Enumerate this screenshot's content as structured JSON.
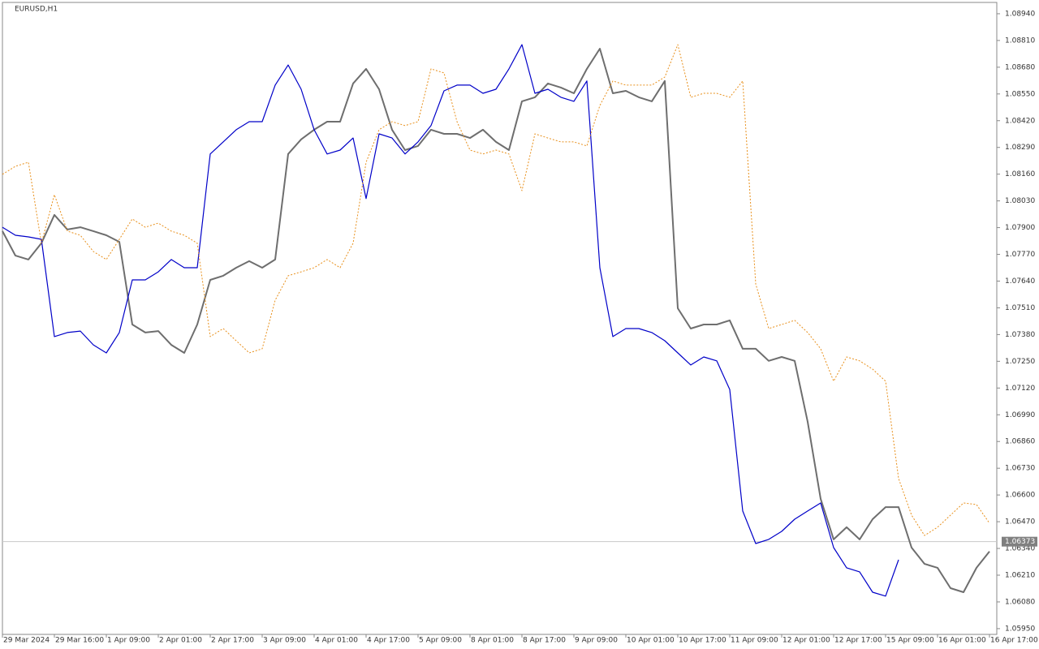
{
  "chart_data": {
    "type": "line",
    "title": "EURUSD,H1",
    "categories": [
      "29 Mar 2024",
      null,
      null,
      null,
      "29 Mar 16:00",
      null,
      null,
      null,
      "1 Apr 09:00",
      null,
      null,
      null,
      "2 Apr 01:00",
      null,
      null,
      null,
      "2 Apr 17:00",
      null,
      null,
      null,
      "3 Apr 09:00",
      null,
      null,
      null,
      "4 Apr 01:00",
      null,
      null,
      null,
      "4 Apr 17:00",
      null,
      null,
      null,
      "5 Apr 09:00",
      null,
      null,
      null,
      "8 Apr 01:00",
      null,
      null,
      null,
      "8 Apr 17:00",
      null,
      null,
      null,
      "9 Apr 09:00",
      null,
      null,
      null,
      "10 Apr 01:00",
      null,
      null,
      null,
      "10 Apr 17:00",
      null,
      null,
      null,
      "11 Apr 09:00",
      null,
      null,
      null,
      "12 Apr 01:00",
      null,
      null,
      null,
      "12 Apr 17:00",
      null,
      null,
      null,
      "15 Apr 09:00",
      null,
      null,
      null,
      "16 Apr 01:00",
      null,
      null,
      null,
      "16 Apr 17:00"
    ],
    "series": [
      {
        "color": "#6e6e6e",
        "style": "solid",
        "values": [
          1.07883,
          1.07764,
          1.07745,
          1.07824,
          1.07962,
          1.07891,
          1.07902,
          1.07883,
          1.07863,
          1.07831,
          1.07429,
          1.0739,
          1.07397,
          1.0733,
          1.07291,
          1.07429,
          1.07646,
          1.07666,
          1.07705,
          1.07737,
          1.07705,
          1.07745,
          1.08258,
          1.08329,
          1.08376,
          1.08415,
          1.08415,
          1.08601,
          1.08672,
          1.08573,
          1.08376,
          1.08277,
          1.08297,
          1.08376,
          1.08356,
          1.08356,
          1.08336,
          1.08376,
          1.08317,
          1.08277,
          1.08514,
          1.08534,
          1.08601,
          1.08581,
          1.08553,
          1.08672,
          1.0877,
          1.08553,
          1.08565,
          1.08534,
          1.08514,
          1.08613,
          1.07508,
          1.07409,
          1.07429,
          1.07429,
          1.07449,
          1.07311,
          1.07311,
          1.07252,
          1.07271,
          1.07252,
          1.06956,
          1.06581,
          1.06384,
          1.06443,
          1.06384,
          1.06482,
          1.06541,
          1.06541,
          1.06344,
          1.06265,
          1.06246,
          1.06147,
          1.06127,
          1.06246,
          1.06325
        ]
      },
      {
        "color": "#0000c8",
        "style": "solid",
        "values": [
          1.07902,
          1.07863,
          1.07855,
          1.07843,
          1.0737,
          1.0739,
          1.07397,
          1.0733,
          1.07291,
          1.0739,
          1.07646,
          1.07646,
          1.07685,
          1.07745,
          1.07705,
          1.07705,
          1.08258,
          1.08317,
          1.08376,
          1.08415,
          1.08415,
          1.08593,
          1.08691,
          1.08573,
          1.08376,
          1.08258,
          1.08277,
          1.08336,
          1.08041,
          1.08356,
          1.08336,
          1.08258,
          1.08317,
          1.08396,
          1.08565,
          1.08593,
          1.08593,
          1.08553,
          1.08573,
          1.08672,
          1.0879,
          1.08553,
          1.08573,
          1.08534,
          1.08514,
          1.08613,
          1.07705,
          1.0737,
          1.07409,
          1.07409,
          1.0739,
          1.0735,
          1.07291,
          1.07232,
          1.07271,
          1.07252,
          1.07113,
          1.06522,
          1.06364,
          1.06384,
          1.06423,
          1.06482,
          1.06522,
          1.06561,
          1.06344,
          1.06246,
          1.06226,
          1.06127,
          1.06108,
          1.06285,
          null,
          null,
          null,
          null,
          null,
          null,
          null
        ]
      },
      {
        "color": "#e8901c",
        "style": "dashed",
        "values": [
          1.08159,
          1.08198,
          1.08218,
          1.07824,
          1.0806,
          1.07883,
          1.07863,
          1.07784,
          1.07745,
          1.07843,
          1.07942,
          1.07902,
          1.07922,
          1.07883,
          1.07863,
          1.07824,
          1.0737,
          1.07409,
          1.0735,
          1.07291,
          1.07311,
          1.07547,
          1.07666,
          1.07685,
          1.07705,
          1.07745,
          1.07705,
          1.07824,
          1.08218,
          1.08376,
          1.08415,
          1.08396,
          1.08415,
          1.08672,
          1.08652,
          1.08415,
          1.08277,
          1.08258,
          1.08277,
          1.08258,
          1.0808,
          1.08356,
          1.08336,
          1.08317,
          1.08317,
          1.08297,
          1.08494,
          1.08613,
          1.08593,
          1.08593,
          1.08593,
          1.08632,
          1.0879,
          1.08534,
          1.08553,
          1.08553,
          1.08534,
          1.08613,
          1.07626,
          1.07409,
          1.07429,
          1.07449,
          1.0739,
          1.07311,
          1.07153,
          1.07271,
          1.07252,
          1.07212,
          1.07153,
          1.0668,
          1.06502,
          1.06403,
          1.06443,
          1.06502,
          1.06561,
          1.06553,
          1.06463
        ]
      }
    ],
    "ylim": [
      1.05922,
      1.08995
    ],
    "yticks": [
      {
        "value": 1.0894,
        "label": "1.08940"
      },
      {
        "value": 1.0881,
        "label": "1.08810"
      },
      {
        "value": 1.0868,
        "label": "1.08680"
      },
      {
        "value": 1.0855,
        "label": "1.08550"
      },
      {
        "value": 1.0842,
        "label": "1.08420"
      },
      {
        "value": 1.0829,
        "label": "1.08290"
      },
      {
        "value": 1.0816,
        "label": "1.08160"
      },
      {
        "value": 1.0803,
        "label": "1.08030"
      },
      {
        "value": 1.079,
        "label": "1.07900"
      },
      {
        "value": 1.0777,
        "label": "1.07770"
      },
      {
        "value": 1.0764,
        "label": "1.07640"
      },
      {
        "value": 1.0751,
        "label": "1.07510"
      },
      {
        "value": 1.0738,
        "label": "1.07380"
      },
      {
        "value": 1.0725,
        "label": "1.07250"
      },
      {
        "value": 1.0712,
        "label": "1.07120"
      },
      {
        "value": 1.0699,
        "label": "1.06990"
      },
      {
        "value": 1.0686,
        "label": "1.06860"
      },
      {
        "value": 1.0673,
        "label": "1.06730"
      },
      {
        "value": 1.066,
        "label": "1.06600"
      },
      {
        "value": 1.0647,
        "label": "1.06470"
      },
      {
        "value": 1.0634,
        "label": "1.06340"
      },
      {
        "value": 1.0621,
        "label": "1.06210"
      },
      {
        "value": 1.0608,
        "label": "1.06080"
      },
      {
        "value": 1.0595,
        "label": "1.05950"
      }
    ],
    "last_price": 1.06373,
    "grid": false
  }
}
